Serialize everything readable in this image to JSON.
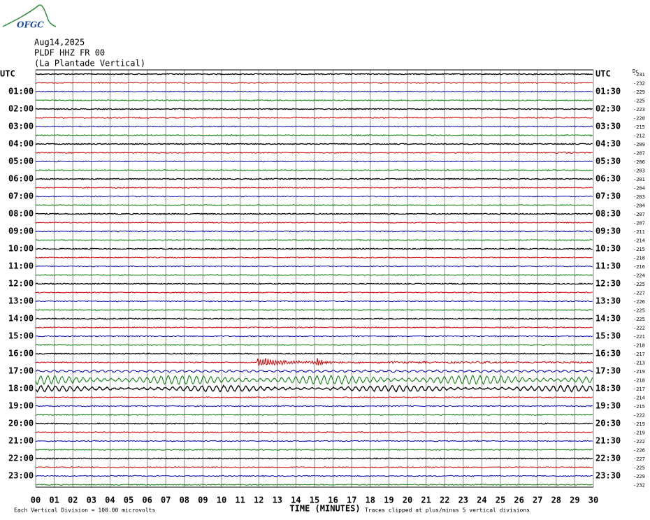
{
  "logo": "OFGC",
  "header": [
    "Aug14,2025",
    "PLDF HHZ FR 00",
    "(La Plantade Vertical)"
  ],
  "left_labels": [
    "UTC",
    "01:00",
    "02:00",
    "03:00",
    "04:00",
    "05:00",
    "06:00",
    "07:00",
    "08:00",
    "09:00",
    "10:00",
    "11:00",
    "12:00",
    "13:00",
    "14:00",
    "15:00",
    "16:00",
    "17:00",
    "18:00",
    "19:00",
    "20:00",
    "21:00",
    "22:00",
    "23:00"
  ],
  "right_labels": [
    "UTC",
    "01:30",
    "02:30",
    "03:30",
    "04:30",
    "05:30",
    "06:30",
    "07:30",
    "08:30",
    "09:30",
    "10:30",
    "11:30",
    "12:30",
    "13:30",
    "14:30",
    "15:30",
    "16:30",
    "17:30",
    "18:30",
    "19:30",
    "20:30",
    "21:30",
    "22:30",
    "23:30"
  ],
  "dc_label": "Dc",
  "dc_values": [
    "-231",
    "-232",
    "-229",
    "-225",
    "-223",
    "-220",
    "-215",
    "-212",
    "-209",
    "-207",
    "-206",
    "-203",
    "-201",
    "-204",
    "-203",
    "-204",
    "-207",
    "-207",
    "-211",
    "-214",
    "-215",
    "-218",
    "-216",
    "-224",
    "-225",
    "-227",
    "-226",
    "-225",
    "-225",
    "-222",
    "-221",
    "-218",
    "-217",
    "-213",
    "-219",
    "-218",
    "-217",
    "-214",
    "-215",
    "-222",
    "-219",
    "-219",
    "-222",
    "-226",
    "-227",
    "-225",
    "-229",
    "-232"
  ],
  "x_ticks": [
    "00",
    "01",
    "02",
    "03",
    "04",
    "05",
    "06",
    "07",
    "08",
    "09",
    "10",
    "11",
    "12",
    "13",
    "14",
    "15",
    "16",
    "17",
    "18",
    "19",
    "20",
    "21",
    "22",
    "23",
    "24",
    "25",
    "26",
    "27",
    "28",
    "29",
    "30"
  ],
  "x_axis_title": "TIME (MINUTES)",
  "footer_left": "Each Vertical Division =  100.00 microvolts",
  "footer_right": "Traces clipped at plus/minus 5 vertical divisions"
}
